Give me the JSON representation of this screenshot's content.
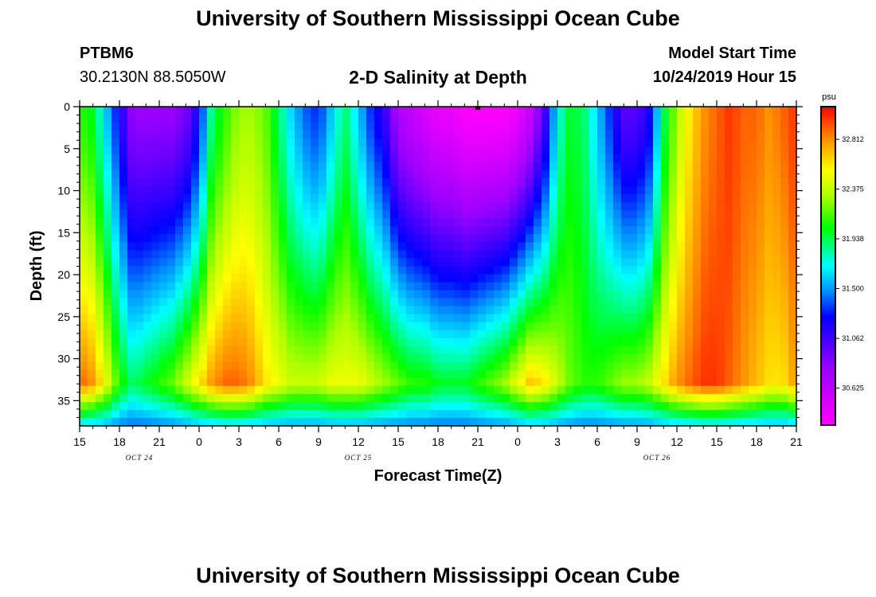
{
  "header": {
    "title": "University of Southern Mississippi Ocean Cube",
    "station": "PTBM6",
    "coordinates": "30.2130N 88.5050W",
    "model_start_label": "Model Start Time",
    "model_start_value": "10/24/2019 Hour 15"
  },
  "footer": {
    "title": "University of Southern Mississippi Ocean Cube"
  },
  "chart_data": {
    "type": "heatmap",
    "title": "2-D Salinity at Depth",
    "xlabel": "Forecast Time(Z)",
    "ylabel": "Depth (ft)",
    "x_ticks": [
      "15",
      "18",
      "21",
      "0",
      "3",
      "6",
      "9",
      "12",
      "15",
      "18",
      "21",
      "0",
      "3",
      "6",
      "9",
      "12",
      "15",
      "18",
      "21"
    ],
    "x_range_hours": [
      0,
      54
    ],
    "date_labels": [
      {
        "text": "OCT 24",
        "hour": 4.5
      },
      {
        "text": "OCT 25",
        "hour": 21
      },
      {
        "text": "OCT 26",
        "hour": 43.5
      }
    ],
    "y_ticks": [
      "0",
      "5",
      "10",
      "15",
      "20",
      "25",
      "30",
      "35"
    ],
    "y_range": [
      0,
      38
    ],
    "y_inverted": true,
    "colorbar": {
      "unit": "psu",
      "range": [
        30.3,
        33.1
      ],
      "labels": [
        "32.812",
        "32.375",
        "31.938",
        "31.500",
        "31.062",
        "30.625"
      ]
    },
    "marker": {
      "hour": 30,
      "depth": 0
    },
    "surface_profile": {
      "hours": [
        0,
        1,
        2,
        3,
        4,
        5,
        6,
        7,
        8,
        9,
        10,
        11,
        12,
        13,
        14,
        15,
        16,
        17,
        18,
        19,
        20,
        21,
        22,
        23,
        24,
        25,
        26,
        27,
        28,
        29,
        30,
        31,
        32,
        33,
        34,
        35,
        36,
        37,
        38,
        39,
        40,
        41,
        42,
        43,
        44,
        45,
        46,
        47,
        48,
        49,
        50,
        51,
        52,
        53,
        54
      ],
      "salinity": [
        32.1,
        32.0,
        31.6,
        31.2,
        30.8,
        30.8,
        30.8,
        30.8,
        30.9,
        31.2,
        31.9,
        32.1,
        32.3,
        32.3,
        32.2,
        31.9,
        31.6,
        31.4,
        31.3,
        31.6,
        31.9,
        31.6,
        31.3,
        31.1,
        30.7,
        30.6,
        30.5,
        30.4,
        30.4,
        30.3,
        30.3,
        30.3,
        30.3,
        30.4,
        30.6,
        31.0,
        31.7,
        32.0,
        31.9,
        31.6,
        31.3,
        31.0,
        31.0,
        31.2,
        31.9,
        32.3,
        32.6,
        32.8,
        32.9,
        33.0,
        32.9,
        32.9,
        32.8,
        32.9,
        33.0
      ]
    },
    "deep_profile": {
      "depth": 33,
      "hours": [
        0,
        1,
        2,
        3,
        4,
        5,
        6,
        7,
        8,
        9,
        10,
        11,
        12,
        13,
        14,
        15,
        16,
        17,
        18,
        19,
        20,
        21,
        22,
        23,
        24,
        25,
        26,
        27,
        28,
        29,
        30,
        31,
        32,
        33,
        34,
        35,
        36,
        37,
        38,
        39,
        40,
        41,
        42,
        43,
        44,
        45,
        46,
        47,
        48,
        49,
        50,
        51,
        52,
        53,
        54
      ],
      "salinity": [
        32.9,
        32.8,
        32.5,
        32.1,
        31.9,
        32.0,
        32.1,
        32.2,
        32.4,
        32.6,
        32.8,
        32.9,
        32.9,
        32.8,
        32.6,
        32.5,
        32.4,
        32.4,
        32.4,
        32.5,
        32.5,
        32.5,
        32.4,
        32.3,
        32.2,
        32.1,
        32.1,
        32.0,
        32.0,
        32.0,
        32.1,
        32.2,
        32.3,
        32.5,
        32.7,
        32.6,
        32.4,
        32.2,
        32.1,
        32.1,
        32.2,
        32.3,
        32.3,
        32.4,
        32.6,
        32.8,
        32.9,
        33.0,
        33.0,
        32.9,
        32.8,
        32.7,
        32.6,
        32.6,
        32.8
      ]
    }
  }
}
